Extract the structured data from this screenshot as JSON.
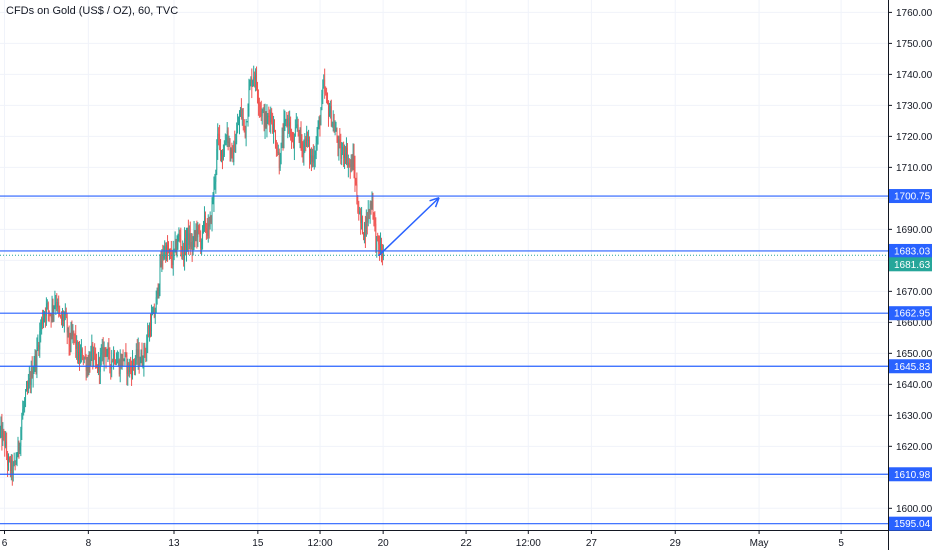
{
  "chart_data": {
    "type": "candlestick",
    "title": "CFDs on Gold (US$ / OZ), 60, TVC",
    "y_axis": {
      "side": "right",
      "ylim": [
        1593,
        1764
      ],
      "ticks": [
        1600,
        1610,
        1620,
        1630,
        1640,
        1650,
        1660,
        1670,
        1680,
        1690,
        1700,
        1710,
        1720,
        1730,
        1740,
        1750,
        1760
      ]
    },
    "x_axis": {
      "ticks": [
        {
          "label": "6",
          "pos": 0.5
        },
        {
          "label": "8",
          "pos": 9.8
        },
        {
          "label": "13",
          "pos": 19.3
        },
        {
          "label": "15",
          "pos": 28.6
        },
        {
          "label": "12:00",
          "pos": 35.5
        },
        {
          "label": "20",
          "pos": 42.5
        },
        {
          "label": "22",
          "pos": 51.7
        },
        {
          "label": "12:00",
          "pos": 58.6
        },
        {
          "label": "27",
          "pos": 65.6
        },
        {
          "label": "29",
          "pos": 74.9
        },
        {
          "label": "May",
          "pos": 84.2
        },
        {
          "label": "5",
          "pos": 93.3
        }
      ],
      "xlim": [
        0,
        98.5
      ]
    },
    "grid": true,
    "colors": {
      "up": "#26a69a",
      "down": "#ef5350",
      "level_line": "#2962ff",
      "level_label_bg": "#2962ff",
      "current_price_bg": "#26a69a",
      "grid": "#f0f3fa",
      "axis_text": "#131722"
    },
    "horizontal_levels": [
      1700.75,
      1683.03,
      1662.95,
      1645.83,
      1610.98,
      1595.04
    ],
    "current_price": 1681.63,
    "current_price_label": "1681.63",
    "level_labels": [
      "1700.75",
      "1683.03",
      "1662.95",
      "1645.83",
      "1610.98",
      "1595.04"
    ],
    "projection_arrow": {
      "from": [
        42.0,
        1681.5
      ],
      "to": [
        48.7,
        1700.2
      ]
    },
    "price_path": [
      [
        0.0,
        1625
      ],
      [
        0.6,
        1622
      ],
      [
        1.0,
        1614
      ],
      [
        1.6,
        1612
      ],
      [
        2.2,
        1620
      ],
      [
        2.6,
        1631
      ],
      [
        3.2,
        1638
      ],
      [
        3.7,
        1645
      ],
      [
        4.2,
        1650
      ],
      [
        4.7,
        1660
      ],
      [
        5.2,
        1665
      ],
      [
        5.7,
        1663
      ],
      [
        6.3,
        1668
      ],
      [
        6.8,
        1660
      ],
      [
        7.3,
        1662
      ],
      [
        7.8,
        1653
      ],
      [
        8.3,
        1656
      ],
      [
        8.8,
        1648
      ],
      [
        9.3,
        1650
      ],
      [
        9.8,
        1646
      ],
      [
        10.3,
        1650
      ],
      [
        10.8,
        1645
      ],
      [
        11.3,
        1648
      ],
      [
        11.8,
        1652
      ],
      [
        12.3,
        1647
      ],
      [
        12.8,
        1650
      ],
      [
        13.3,
        1646
      ],
      [
        13.8,
        1649
      ],
      [
        14.3,
        1645
      ],
      [
        14.8,
        1646
      ],
      [
        15.3,
        1649
      ],
      [
        15.8,
        1648
      ],
      [
        16.3,
        1652
      ],
      [
        16.8,
        1660
      ],
      [
        17.3,
        1663
      ],
      [
        17.8,
        1676
      ],
      [
        18.3,
        1684
      ],
      [
        18.8,
        1682
      ],
      [
        19.2,
        1680
      ],
      [
        19.6,
        1684
      ],
      [
        20.0,
        1688
      ],
      [
        20.4,
        1682
      ],
      [
        20.9,
        1688
      ],
      [
        21.4,
        1684
      ],
      [
        21.9,
        1690
      ],
      [
        22.4,
        1686
      ],
      [
        22.8,
        1692
      ],
      [
        23.3,
        1689
      ],
      [
        23.8,
        1702
      ],
      [
        24.3,
        1720
      ],
      [
        24.8,
        1714
      ],
      [
        25.3,
        1722
      ],
      [
        25.8,
        1712
      ],
      [
        26.3,
        1720
      ],
      [
        26.8,
        1728
      ],
      [
        27.3,
        1722
      ],
      [
        27.8,
        1736
      ],
      [
        28.3,
        1741
      ],
      [
        28.7,
        1734
      ],
      [
        29.1,
        1728
      ],
      [
        29.6,
        1724
      ],
      [
        30.1,
        1728
      ],
      [
        30.6,
        1720
      ],
      [
        31.1,
        1712
      ],
      [
        31.6,
        1722
      ],
      [
        32.1,
        1726
      ],
      [
        32.6,
        1716
      ],
      [
        33.1,
        1724
      ],
      [
        33.6,
        1716
      ],
      [
        34.1,
        1720
      ],
      [
        34.6,
        1712
      ],
      [
        35.1,
        1716
      ],
      [
        35.6,
        1726
      ],
      [
        36.0,
        1736
      ],
      [
        36.4,
        1730
      ],
      [
        36.9,
        1726
      ],
      [
        37.4,
        1720
      ],
      [
        37.9,
        1714
      ],
      [
        38.4,
        1716
      ],
      [
        38.9,
        1710
      ],
      [
        39.3,
        1712
      ],
      [
        39.7,
        1700
      ],
      [
        40.1,
        1692
      ],
      [
        40.6,
        1690
      ],
      [
        41.0,
        1696
      ],
      [
        41.4,
        1700
      ],
      [
        41.8,
        1686
      ],
      [
        42.2,
        1684
      ],
      [
        42.6,
        1681.6
      ]
    ]
  }
}
